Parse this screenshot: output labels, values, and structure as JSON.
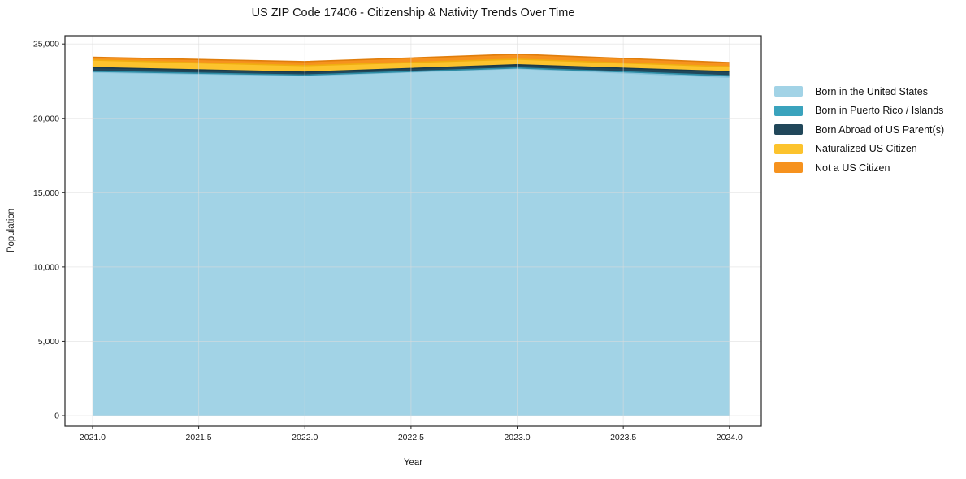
{
  "title": "US ZIP Code 17406 - Citizenship & Nativity Trends Over Time",
  "chart_data": {
    "type": "area",
    "stacked": true,
    "title": "US ZIP Code 17406 - Citizenship & Nativity Trends Over Time",
    "xlabel": "Year",
    "ylabel": "Population",
    "x": [
      2021,
      2022,
      2023,
      2024
    ],
    "series": [
      {
        "name": "Born in the United States",
        "color": "#a2d3e6",
        "edge": "#88c2da",
        "values": [
          23100,
          22870,
          23350,
          22760
        ]
      },
      {
        "name": "Born in Puerto Rico / Islands",
        "color": "#3aa3bd",
        "edge": "#2e8ca5",
        "values": [
          60,
          45,
          40,
          110
        ]
      },
      {
        "name": "Born Abroad of US Parent(s)",
        "color": "#21475a",
        "edge": "#1a3a4a",
        "values": [
          250,
          190,
          210,
          270
        ]
      },
      {
        "name": "Naturalized US Citizen",
        "color": "#fcc32d",
        "edge": "#f0ad10",
        "values": [
          510,
          440,
          380,
          330
        ]
      },
      {
        "name": "Not a US Citizen",
        "color": "#f6921e",
        "edge": "#e07d0b",
        "values": [
          190,
          270,
          330,
          280
        ]
      }
    ],
    "xlim": [
      2020.87,
      2024.15
    ],
    "ylim": [
      0,
      25000
    ],
    "xticks": {
      "values": [
        2021,
        2021.5,
        2022,
        2022.5,
        2023,
        2023.5,
        2024
      ],
      "labels": [
        "2021.0",
        "2021.5",
        "2022.0",
        "2022.5",
        "2023.0",
        "2023.5",
        "2024.0"
      ]
    },
    "yticks": {
      "values": [
        0,
        5000,
        10000,
        15000,
        20000,
        25000
      ],
      "labels": [
        "0",
        "5,000",
        "10,000",
        "15,000",
        "20,000",
        "25,000"
      ]
    },
    "grid": true,
    "grid_color": "#dcdcdc",
    "frame_color": "#262626",
    "legend_position": "right"
  }
}
